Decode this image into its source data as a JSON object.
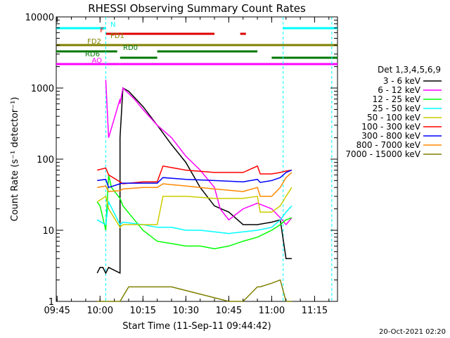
{
  "chart_data": {
    "type": "line",
    "title": "RHESSI Observing Summary Count Rates",
    "xlabel": "Start Time (11-Sep-11 09:44:42)",
    "ylabel": "Count Rate (s⁻¹ detector⁻¹)",
    "y_scale": "log",
    "ylim": [
      1,
      10000
    ],
    "xlim": [
      "09:44:42",
      "11:23:00"
    ],
    "x_ticks": [
      "09:45",
      "10:00",
      "10:15",
      "10:30",
      "10:45",
      "11:00",
      "11:15"
    ],
    "y_ticks": [
      "1",
      "10",
      "100",
      "1000",
      "10000"
    ],
    "legend_title": "Det 1,3,4,5,6,9",
    "legend_position": "right",
    "date_stamp": "20-Oct-2021 02:20",
    "series": [
      {
        "name": "3 - 6 keV",
        "color": "#000000",
        "x": [
          "09:59",
          "10:00",
          "10:01",
          "10:02",
          "10:03",
          "10:07",
          "10:07",
          "10:08",
          "10:10",
          "10:15",
          "10:20",
          "10:25",
          "10:30",
          "10:35",
          "10:40",
          "10:45",
          "10:50",
          "10:55",
          "11:00",
          "11:03",
          "11:05",
          "11:07"
        ],
        "y": [
          2.5,
          3,
          3,
          2.5,
          3,
          2.5,
          200,
          1000,
          900,
          550,
          300,
          160,
          90,
          40,
          22,
          18,
          12,
          12,
          13,
          14,
          4,
          4
        ]
      },
      {
        "name": "6 - 12 keV",
        "color": "#ff00ff",
        "x": [
          "10:02",
          "10:03",
          "10:07",
          "10:07",
          "10:08",
          "10:12",
          "10:15",
          "10:20",
          "10:25",
          "10:30",
          "10:35",
          "10:40",
          "10:42",
          "10:45",
          "10:50",
          "10:55",
          "11:00",
          "11:03",
          "11:05",
          "11:07"
        ],
        "y": [
          1300,
          200,
          700,
          600,
          1000,
          700,
          500,
          300,
          200,
          110,
          70,
          40,
          20,
          14,
          20,
          24,
          20,
          15,
          12,
          15
        ]
      },
      {
        "name": "12 - 25 keV",
        "color": "#00ff00",
        "x": [
          "09:59",
          "10:00",
          "10:02",
          "10:03",
          "10:04",
          "10:07",
          "10:08",
          "10:12",
          "10:15",
          "10:20",
          "10:25",
          "10:30",
          "10:35",
          "10:40",
          "10:45",
          "10:50",
          "10:55",
          "11:00",
          "11:03",
          "11:05",
          "11:07"
        ],
        "y": [
          25,
          22,
          10,
          60,
          40,
          28,
          22,
          14,
          10,
          7,
          6.5,
          6,
          6,
          5.5,
          6,
          7,
          8,
          10,
          12,
          14,
          15
        ]
      },
      {
        "name": "25 - 50 keV",
        "color": "#00ffff",
        "x": [
          "09:59",
          "10:02",
          "10:03",
          "10:07",
          "10:08",
          "10:15",
          "10:20",
          "10:25",
          "10:30",
          "10:35",
          "10:40",
          "10:45",
          "10:50",
          "10:55",
          "11:00",
          "11:03",
          "11:05",
          "11:07"
        ],
        "y": [
          14,
          12,
          25,
          12,
          13,
          12,
          11,
          11,
          10,
          10,
          9.5,
          9,
          9.5,
          10,
          11,
          14,
          18,
          22
        ]
      },
      {
        "name": "50 - 100 keV",
        "color": "#cccc00",
        "x": [
          "09:59",
          "10:02",
          "10:03",
          "10:07",
          "10:08",
          "10:15",
          "10:20",
          "10:22",
          "10:30",
          "10:40",
          "10:50",
          "10:55",
          "10:56",
          "11:00",
          "11:03",
          "11:05",
          "11:07"
        ],
        "y": [
          25,
          30,
          20,
          11,
          12,
          12,
          12,
          30,
          30,
          28,
          28,
          30,
          18,
          18,
          22,
          30,
          40
        ]
      },
      {
        "name": "100 - 300 keV",
        "color": "#ff0000",
        "x": [
          "09:59",
          "10:02",
          "10:03",
          "10:07",
          "10:08",
          "10:15",
          "10:20",
          "10:22",
          "10:30",
          "10:40",
          "10:50",
          "10:55",
          "10:56",
          "11:00",
          "11:03",
          "11:05",
          "11:07"
        ],
        "y": [
          70,
          75,
          60,
          48,
          45,
          48,
          48,
          80,
          70,
          65,
          65,
          80,
          62,
          62,
          65,
          68,
          70
        ]
      },
      {
        "name": "300 - 800 keV",
        "color": "#0000ff",
        "x": [
          "09:59",
          "10:02",
          "10:03",
          "10:07",
          "10:08",
          "10:15",
          "10:20",
          "10:22",
          "10:30",
          "10:40",
          "10:50",
          "10:55",
          "10:56",
          "11:00",
          "11:03",
          "11:05",
          "11:07"
        ],
        "y": [
          50,
          52,
          40,
          45,
          46,
          46,
          46,
          55,
          52,
          50,
          48,
          52,
          47,
          50,
          55,
          65,
          70
        ]
      },
      {
        "name": "800 - 7000 keV",
        "color": "#ff8800",
        "x": [
          "09:59",
          "10:02",
          "10:03",
          "10:07",
          "10:08",
          "10:15",
          "10:20",
          "10:22",
          "10:30",
          "10:40",
          "10:50",
          "10:55",
          "10:56",
          "11:00",
          "11:03",
          "11:05",
          "11:07"
        ],
        "y": [
          40,
          42,
          35,
          36,
          38,
          40,
          40,
          45,
          42,
          38,
          35,
          40,
          30,
          30,
          40,
          55,
          65
        ]
      },
      {
        "name": "7000 - 15000 keV",
        "color": "#808000",
        "x": [
          "09:59",
          "10:02",
          "10:07",
          "10:10",
          "10:20",
          "10:25",
          "10:45",
          "10:50",
          "10:55",
          "10:56",
          "11:00",
          "11:03",
          "11:05",
          "11:07"
        ],
        "y": [
          1,
          1,
          1,
          1.6,
          1.6,
          1.6,
          1,
          1,
          1.6,
          1.6,
          1.8,
          2,
          1,
          1
        ]
      }
    ],
    "state_flags": [
      {
        "label": "N",
        "color": "#00ffff",
        "segments": [
          [
            "09:44:42",
            "10:02"
          ],
          [
            "11:04",
            "11:23"
          ]
        ]
      },
      {
        "label": "F",
        "color": "#dd0000",
        "segments": [
          [
            "10:02",
            "10:40"
          ],
          [
            "10:49",
            "10:51"
          ]
        ]
      },
      {
        "label": "FD1",
        "color": "#808000",
        "segments": []
      },
      {
        "label": "FD2",
        "color": "#808000",
        "segments": [
          [
            "09:44:42",
            "11:23"
          ]
        ]
      },
      {
        "label": "RD0",
        "color": "#007700",
        "segments": [
          [
            "09:44:42",
            "10:06"
          ],
          [
            "10:20",
            "10:55"
          ]
        ]
      },
      {
        "label": "RD6",
        "color": "#007700",
        "segments": [
          [
            "10:07",
            "10:20"
          ],
          [
            "11:00",
            "11:23"
          ]
        ]
      },
      {
        "label": "AO",
        "color": "#ff00ff",
        "segments": [
          [
            "09:44:42",
            "10:07"
          ],
          [
            "10:07",
            "11:23"
          ]
        ]
      }
    ]
  }
}
